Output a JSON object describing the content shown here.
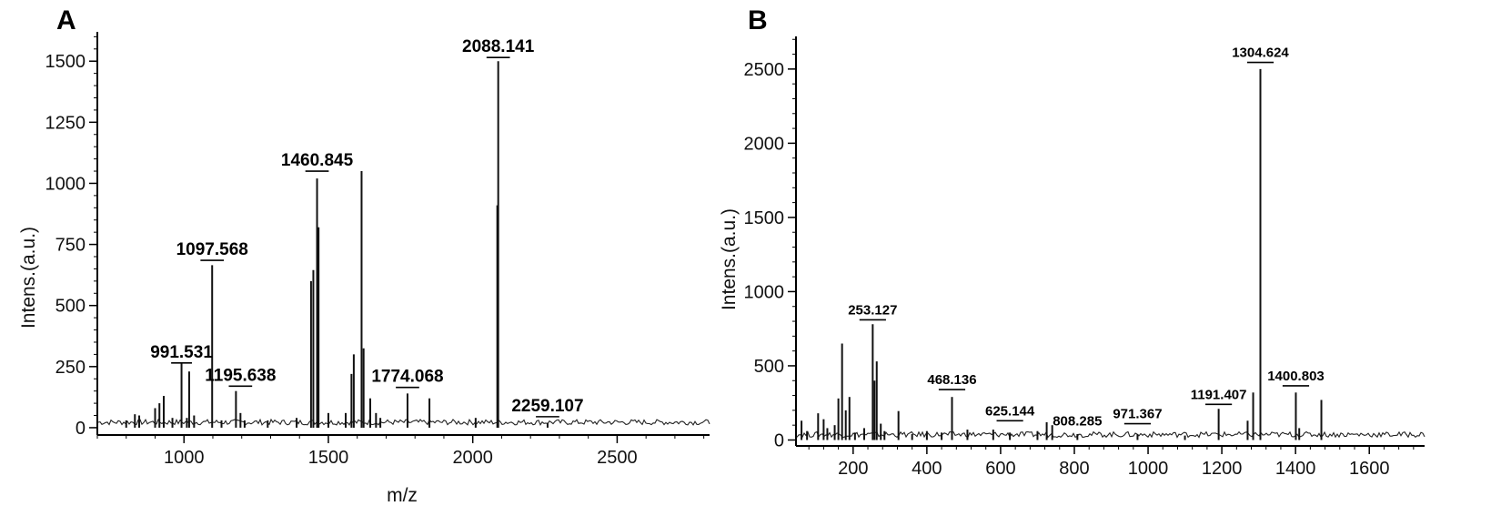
{
  "chart_data": [
    {
      "panel": "A",
      "type": "line",
      "xlabel": "m/z",
      "ylabel": "Intens.(a.u.)",
      "xlim": [
        700,
        2820
      ],
      "ylim": [
        -30,
        1620
      ],
      "xticks": [
        1000,
        1500,
        2000,
        2500
      ],
      "yticks": [
        0,
        250,
        500,
        750,
        1000,
        1250,
        1500
      ],
      "peaks": [
        {
          "x": 800,
          "y": 30
        },
        {
          "x": 830,
          "y": 55
        },
        {
          "x": 845,
          "y": 50
        },
        {
          "x": 900,
          "y": 80
        },
        {
          "x": 915,
          "y": 100
        },
        {
          "x": 930,
          "y": 130
        },
        {
          "x": 960,
          "y": 40
        },
        {
          "x": 991.531,
          "y": 265
        },
        {
          "x": 1010,
          "y": 40
        },
        {
          "x": 1018,
          "y": 230
        },
        {
          "x": 1035,
          "y": 50
        },
        {
          "x": 1097.568,
          "y": 665
        },
        {
          "x": 1130,
          "y": 30
        },
        {
          "x": 1180,
          "y": 150
        },
        {
          "x": 1195.638,
          "y": 60
        },
        {
          "x": 1210,
          "y": 30
        },
        {
          "x": 1290,
          "y": 30
        },
        {
          "x": 1390,
          "y": 40
        },
        {
          "x": 1440,
          "y": 600
        },
        {
          "x": 1448,
          "y": 645
        },
        {
          "x": 1460.845,
          "y": 1020
        },
        {
          "x": 1466,
          "y": 820
        },
        {
          "x": 1500,
          "y": 60
        },
        {
          "x": 1560,
          "y": 60
        },
        {
          "x": 1580,
          "y": 220
        },
        {
          "x": 1588,
          "y": 300
        },
        {
          "x": 1615,
          "y": 1050
        },
        {
          "x": 1622,
          "y": 325
        },
        {
          "x": 1645,
          "y": 120
        },
        {
          "x": 1665,
          "y": 60
        },
        {
          "x": 1680,
          "y": 40
        },
        {
          "x": 1774.068,
          "y": 140
        },
        {
          "x": 1850,
          "y": 120
        },
        {
          "x": 2010,
          "y": 40
        },
        {
          "x": 2085,
          "y": 910
        },
        {
          "x": 2088.141,
          "y": 1500
        },
        {
          "x": 2259.107,
          "y": 20
        }
      ],
      "annotations": [
        {
          "label": "2088.141",
          "x": 2088.141,
          "y": 1515,
          "halfwidth": 90,
          "fontsize": 19
        },
        {
          "label": "1460.845",
          "x": 1460.845,
          "y": 1050,
          "halfwidth": 90,
          "fontsize": 19
        },
        {
          "label": "1097.568",
          "x": 1097.568,
          "y": 685,
          "halfwidth": 90,
          "fontsize": 19
        },
        {
          "label": "991.531",
          "x": 991.531,
          "y": 265,
          "halfwidth": 80,
          "fontsize": 19
        },
        {
          "label": "1195.638",
          "x": 1195.638,
          "y": 170,
          "halfwidth": 90,
          "fontsize": 19
        },
        {
          "label": "1774.068",
          "x": 1774.068,
          "y": 165,
          "halfwidth": 90,
          "fontsize": 19
        },
        {
          "label": "2259.107",
          "x": 2259.107,
          "y": 45,
          "halfwidth": 90,
          "fontsize": 19
        }
      ]
    },
    {
      "panel": "B",
      "type": "line",
      "xlabel": "",
      "ylabel": "Intens.(a.u.)",
      "xlim": [
        45,
        1750
      ],
      "ylim": [
        -40,
        2720
      ],
      "xticks": [
        200,
        400,
        600,
        800,
        1000,
        1200,
        1400,
        1600
      ],
      "yticks": [
        0,
        500,
        1000,
        1500,
        2000,
        2500
      ],
      "peaks": [
        {
          "x": 60,
          "y": 130
        },
        {
          "x": 75,
          "y": 60
        },
        {
          "x": 105,
          "y": 180
        },
        {
          "x": 120,
          "y": 140
        },
        {
          "x": 130,
          "y": 80
        },
        {
          "x": 150,
          "y": 100
        },
        {
          "x": 160,
          "y": 280
        },
        {
          "x": 170,
          "y": 650
        },
        {
          "x": 180,
          "y": 200
        },
        {
          "x": 190,
          "y": 290
        },
        {
          "x": 205,
          "y": 50
        },
        {
          "x": 230,
          "y": 80
        },
        {
          "x": 253.127,
          "y": 780
        },
        {
          "x": 258,
          "y": 400
        },
        {
          "x": 264,
          "y": 530
        },
        {
          "x": 275,
          "y": 110
        },
        {
          "x": 285,
          "y": 60
        },
        {
          "x": 323,
          "y": 195
        },
        {
          "x": 360,
          "y": 40
        },
        {
          "x": 400,
          "y": 60
        },
        {
          "x": 440,
          "y": 50
        },
        {
          "x": 468.136,
          "y": 290
        },
        {
          "x": 510,
          "y": 70
        },
        {
          "x": 580,
          "y": 70
        },
        {
          "x": 625.144,
          "y": 50
        },
        {
          "x": 700,
          "y": 60
        },
        {
          "x": 725,
          "y": 120
        },
        {
          "x": 740,
          "y": 100
        },
        {
          "x": 808.285,
          "y": 40
        },
        {
          "x": 971.367,
          "y": 40
        },
        {
          "x": 1100,
          "y": 30
        },
        {
          "x": 1191.407,
          "y": 210
        },
        {
          "x": 1270,
          "y": 130
        },
        {
          "x": 1285,
          "y": 320
        },
        {
          "x": 1304.624,
          "y": 2500
        },
        {
          "x": 1400.803,
          "y": 320
        },
        {
          "x": 1410,
          "y": 80
        },
        {
          "x": 1470,
          "y": 270
        }
      ],
      "annotations": [
        {
          "label": "1304.624",
          "x": 1304.624,
          "y": 2545,
          "halfwidth": 45,
          "fontsize": 15
        },
        {
          "label": "253.127",
          "x": 253.127,
          "y": 810,
          "halfwidth": 45,
          "fontsize": 15
        },
        {
          "label": "468.136",
          "x": 468.136,
          "y": 340,
          "halfwidth": 45,
          "fontsize": 15
        },
        {
          "label": "625.144",
          "x": 625.144,
          "y": 130,
          "halfwidth": 45,
          "fontsize": 15
        },
        {
          "label": "808.285",
          "x": 808.285,
          "y": 60,
          "halfwidth": 0,
          "fontsize": 15
        },
        {
          "label": "971.367",
          "x": 971.367,
          "y": 110,
          "halfwidth": 45,
          "fontsize": 15
        },
        {
          "label": "1191.407",
          "x": 1191.407,
          "y": 240,
          "halfwidth": 45,
          "fontsize": 15
        },
        {
          "label": "1400.803",
          "x": 1400.803,
          "y": 365,
          "halfwidth": 45,
          "fontsize": 15
        }
      ]
    }
  ]
}
